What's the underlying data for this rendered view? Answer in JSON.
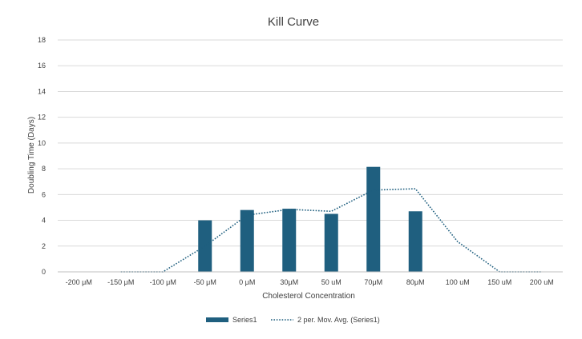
{
  "chart_data": {
    "type": "bar",
    "title": "Kill Curve",
    "xlabel": "Cholesterol Concentration",
    "ylabel": "Doubling Time (Days)",
    "ylim": [
      0,
      18
    ],
    "yticks": [
      0,
      2,
      4,
      6,
      8,
      10,
      12,
      14,
      16,
      18
    ],
    "grid": true,
    "legend_position": "bottom",
    "categories": [
      "-200 μM",
      "-150 μM",
      "-100 μM",
      "-50 μM",
      "0 μM",
      "30μM",
      "50 uM",
      "70μM",
      "80μM",
      "100 uM",
      "150 uM",
      "200 uM"
    ],
    "series": [
      {
        "name": "Series1",
        "type": "bar",
        "color": "#1f5f7f",
        "values": [
          0,
          0,
          0,
          4.0,
          4.8,
          4.9,
          4.5,
          8.15,
          4.7,
          0,
          0,
          0
        ]
      },
      {
        "name": "2 per. Mov. Avg. (Series1)",
        "type": "line",
        "style": "dotted",
        "color": "#1f5f7f",
        "values": [
          null,
          0,
          0,
          2.0,
          4.4,
          4.85,
          4.7,
          6.35,
          6.45,
          2.35,
          0,
          0
        ]
      }
    ]
  }
}
